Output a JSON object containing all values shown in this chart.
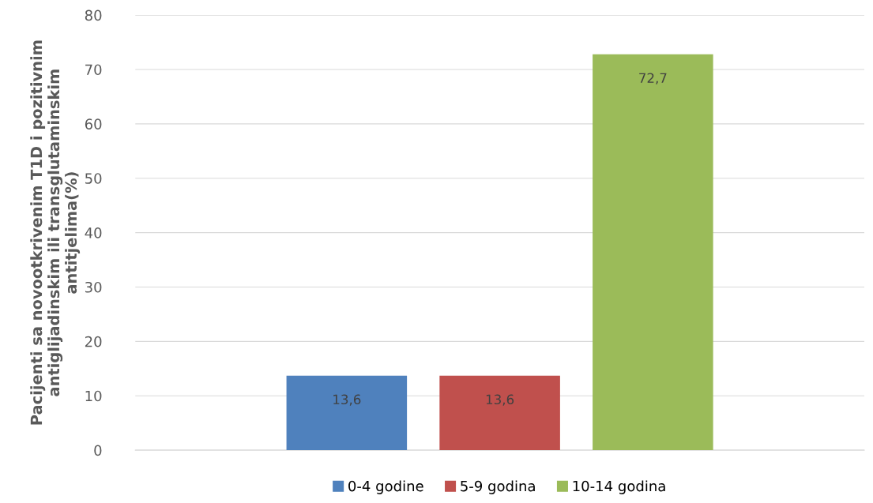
{
  "chart_data": {
    "type": "bar",
    "ylabel": "Pacijenti sa novootkrivenim T1D i pozitivnim\nantiglijadinskim ili transglutaminskim\nantitjelima(%)",
    "categories": [
      null
    ],
    "series": [
      {
        "name": "0-4 godine",
        "color": "#4f81bd",
        "values": [
          13.6
        ],
        "value_labels": [
          "13,6"
        ]
      },
      {
        "name": "5-9 godina",
        "color": "#c0504d",
        "values": [
          13.6
        ],
        "value_labels": [
          "13,6"
        ]
      },
      {
        "name": "10-14 godina",
        "color": "#9bbb59",
        "values": [
          72.7
        ],
        "value_labels": [
          "72,7"
        ]
      }
    ],
    "ylim": [
      0,
      80
    ],
    "yticks": [
      0,
      10,
      20,
      30,
      40,
      50,
      60,
      70,
      80
    ],
    "grid": "y",
    "legend": "bottom"
  }
}
